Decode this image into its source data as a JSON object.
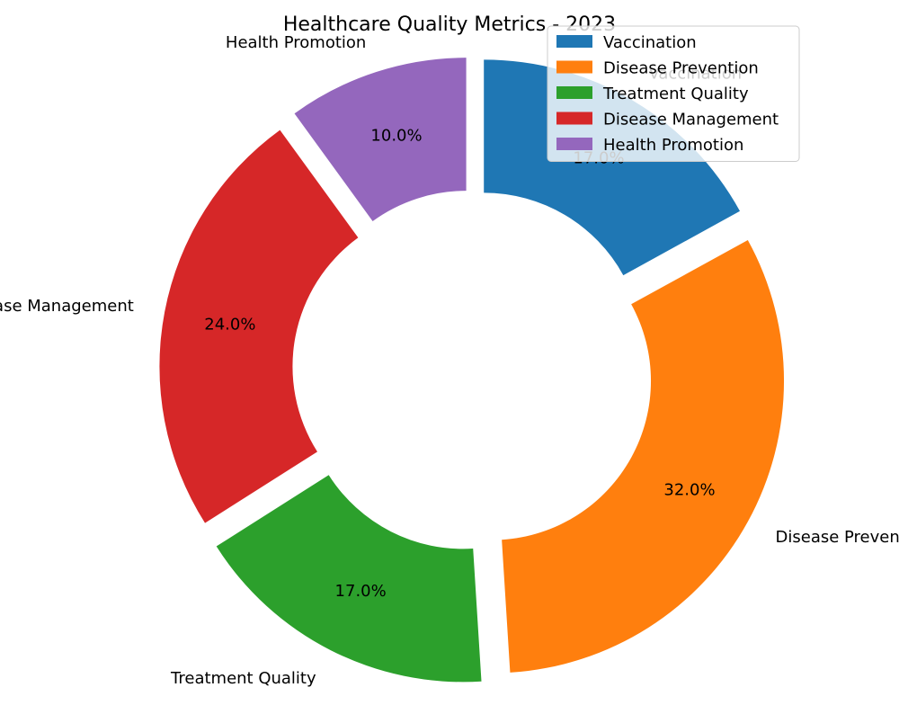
{
  "chart_data": {
    "type": "pie",
    "variant": "donut",
    "title": "Healthcare Quality Metrics - 2023",
    "categories": [
      "Vaccination",
      "Disease Prevention",
      "Treatment Quality",
      "Disease Management",
      "Health Promotion"
    ],
    "values": [
      17.0,
      32.0,
      17.0,
      24.0,
      10.0
    ],
    "data_labels": [
      "17.0%",
      "32.0%",
      "17.0%",
      "24.0%",
      "10.0%"
    ],
    "colors": [
      "#1f77b4",
      "#ff7f0e",
      "#2ca02c",
      "#d62728",
      "#9467bd"
    ],
    "start_angle_deg": 90,
    "direction": "clockwise",
    "exploded": true,
    "legend_position": "top-right"
  }
}
